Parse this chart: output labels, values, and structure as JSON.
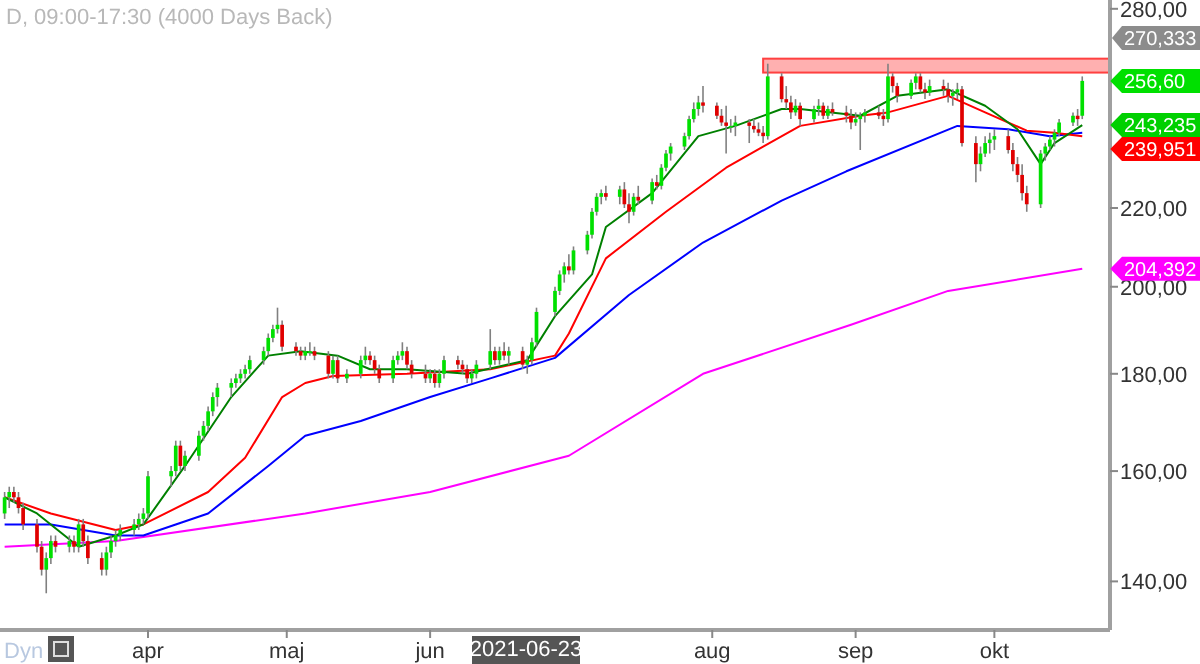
{
  "chart_data": {
    "type": "candlestick",
    "title": "D, 09:00-17:30 (4000 Days Back)",
    "log": true,
    "ylim": [
      132,
      283
    ],
    "yticks": [
      {
        "value": 140,
        "label": "140,00"
      },
      {
        "value": 160,
        "label": "160,00"
      },
      {
        "value": 180,
        "label": "180,00"
      },
      {
        "value": 200,
        "label": "200,00"
      },
      {
        "value": 220,
        "label": "220,00"
      },
      {
        "value": 280,
        "label": "280,00"
      }
    ],
    "xlim": [
      "2021-02-28",
      "2021-10-26"
    ],
    "xticks": [
      {
        "value": "2021-04-01",
        "label": "apr"
      },
      {
        "value": "2021-05-01",
        "label": "maj"
      },
      {
        "value": "2021-06-01",
        "label": "jun"
      },
      {
        "value": "2021-08-01",
        "label": "aug"
      },
      {
        "value": "2021-09-01",
        "label": "sep"
      },
      {
        "value": "2021-10-01",
        "label": "okt"
      }
    ],
    "x": [
      "2021-03-01",
      "2021-03-02",
      "2021-03-03",
      "2021-03-04",
      "2021-03-05",
      "2021-03-08",
      "2021-03-09",
      "2021-03-10",
      "2021-03-11",
      "2021-03-12",
      "2021-03-15",
      "2021-03-16",
      "2021-03-17",
      "2021-03-18",
      "2021-03-19",
      "2021-03-22",
      "2021-03-23",
      "2021-03-24",
      "2021-03-25",
      "2021-03-26",
      "2021-03-29",
      "2021-03-30",
      "2021-03-31",
      "2021-04-01",
      "2021-04-06",
      "2021-04-07",
      "2021-04-08",
      "2021-04-09",
      "2021-04-12",
      "2021-04-13",
      "2021-04-14",
      "2021-04-15",
      "2021-04-16",
      "2021-04-19",
      "2021-04-20",
      "2021-04-21",
      "2021-04-22",
      "2021-04-23",
      "2021-04-26",
      "2021-04-27",
      "2021-04-28",
      "2021-04-29",
      "2021-04-30",
      "2021-05-03",
      "2021-05-04",
      "2021-05-05",
      "2021-05-06",
      "2021-05-07",
      "2021-05-10",
      "2021-05-11",
      "2021-05-12",
      "2021-05-14",
      "2021-05-17",
      "2021-05-18",
      "2021-05-19",
      "2021-05-20",
      "2021-05-21",
      "2021-05-24",
      "2021-05-25",
      "2021-05-26",
      "2021-05-27",
      "2021-05-28",
      "2021-05-31",
      "2021-06-01",
      "2021-06-02",
      "2021-06-03",
      "2021-06-04",
      "2021-06-07",
      "2021-06-08",
      "2021-06-09",
      "2021-06-10",
      "2021-06-11",
      "2021-06-14",
      "2021-06-15",
      "2021-06-16",
      "2021-06-17",
      "2021-06-18",
      "2021-06-21",
      "2021-06-22",
      "2021-06-23",
      "2021-06-24",
      "2021-06-28",
      "2021-06-29",
      "2021-06-30",
      "2021-07-01",
      "2021-07-02",
      "2021-07-05",
      "2021-07-06",
      "2021-07-07",
      "2021-07-08",
      "2021-07-09",
      "2021-07-12",
      "2021-07-13",
      "2021-07-14",
      "2021-07-15",
      "2021-07-16",
      "2021-07-19",
      "2021-07-20",
      "2021-07-21",
      "2021-07-22",
      "2021-07-23",
      "2021-07-26",
      "2021-07-27",
      "2021-07-28",
      "2021-07-29",
      "2021-07-30",
      "2021-08-02",
      "2021-08-03",
      "2021-08-04",
      "2021-08-05",
      "2021-08-06",
      "2021-08-09",
      "2021-08-10",
      "2021-08-11",
      "2021-08-12",
      "2021-08-13",
      "2021-08-16",
      "2021-08-17",
      "2021-08-18",
      "2021-08-19",
      "2021-08-20",
      "2021-08-23",
      "2021-08-24",
      "2021-08-25",
      "2021-08-26",
      "2021-08-27",
      "2021-08-30",
      "2021-08-31",
      "2021-09-01",
      "2021-09-02",
      "2021-09-03",
      "2021-09-06",
      "2021-09-07",
      "2021-09-08",
      "2021-09-09",
      "2021-09-10",
      "2021-09-13",
      "2021-09-14",
      "2021-09-15",
      "2021-09-16",
      "2021-09-17",
      "2021-09-20",
      "2021-09-21",
      "2021-09-22",
      "2021-09-23",
      "2021-09-24",
      "2021-09-27",
      "2021-09-28",
      "2021-09-29",
      "2021-09-30",
      "2021-10-01",
      "2021-10-04",
      "2021-10-05",
      "2021-10-06",
      "2021-10-07",
      "2021-10-08",
      "2021-10-11",
      "2021-10-12",
      "2021-10-13",
      "2021-10-14",
      "2021-10-15",
      "2021-10-18",
      "2021-10-19",
      "2021-10-20"
    ],
    "ohlc": [
      [
        152,
        156,
        151,
        155
      ],
      [
        155,
        157,
        153,
        156
      ],
      [
        156,
        157,
        154,
        155
      ],
      [
        155,
        156,
        152,
        153
      ],
      [
        153,
        154,
        149,
        150
      ],
      [
        150,
        151,
        145,
        146
      ],
      [
        146,
        147,
        141,
        142
      ],
      [
        142,
        145,
        138,
        144
      ],
      [
        144,
        148,
        143,
        147
      ],
      [
        147,
        148,
        145,
        146
      ],
      [
        146,
        148,
        145,
        147
      ],
      [
        147,
        148,
        145,
        146
      ],
      [
        146,
        151,
        145,
        150
      ],
      [
        150,
        151,
        146,
        147
      ],
      [
        147,
        148,
        143,
        144
      ],
      [
        144,
        145,
        141,
        142
      ],
      [
        142,
        146,
        141,
        145
      ],
      [
        145,
        148,
        144,
        147
      ],
      [
        147,
        149,
        146,
        148
      ],
      [
        148,
        150,
        147,
        149
      ],
      [
        149,
        151,
        148,
        150
      ],
      [
        150,
        152,
        149,
        151
      ],
      [
        151,
        153,
        150,
        152
      ],
      [
        152,
        160,
        151,
        159
      ],
      [
        159,
        161,
        157,
        160
      ],
      [
        160,
        166,
        159,
        165
      ],
      [
        165,
        166,
        160,
        161
      ],
      [
        161,
        164,
        160,
        163
      ],
      [
        163,
        168,
        162,
        167
      ],
      [
        167,
        170,
        166,
        169
      ],
      [
        169,
        173,
        168,
        172
      ],
      [
        172,
        176,
        171,
        175
      ],
      [
        175,
        178,
        173,
        177
      ],
      [
        177,
        179,
        175,
        178
      ],
      [
        178,
        180,
        177,
        179
      ],
      [
        179,
        181,
        178,
        180
      ],
      [
        180,
        182,
        179,
        181
      ],
      [
        181,
        184,
        180,
        183
      ],
      [
        183,
        186,
        182,
        185
      ],
      [
        185,
        189,
        184,
        188
      ],
      [
        188,
        191,
        187,
        190
      ],
      [
        190,
        195,
        189,
        191
      ],
      [
        191,
        192,
        185,
        186
      ],
      [
        186,
        187,
        184,
        185
      ],
      [
        185,
        186,
        183,
        184
      ],
      [
        184,
        186,
        183,
        185
      ],
      [
        185,
        187,
        184,
        185
      ],
      [
        185,
        186,
        183,
        184
      ],
      [
        184,
        185,
        179,
        180
      ],
      [
        180,
        184,
        179,
        183
      ],
      [
        183,
        184,
        178,
        179
      ],
      [
        179,
        181,
        178,
        180
      ],
      [
        180,
        184,
        179,
        183
      ],
      [
        183,
        186,
        182,
        184
      ],
      [
        184,
        185,
        182,
        183
      ],
      [
        183,
        184,
        180,
        181
      ],
      [
        181,
        182,
        178,
        179
      ],
      [
        179,
        184,
        178,
        183
      ],
      [
        183,
        185,
        182,
        184
      ],
      [
        184,
        187,
        183,
        185
      ],
      [
        185,
        186,
        181,
        182
      ],
      [
        182,
        183,
        179,
        180
      ],
      [
        180,
        182,
        178,
        179
      ],
      [
        179,
        181,
        178,
        180
      ],
      [
        180,
        181,
        177,
        178
      ],
      [
        178,
        181,
        177,
        180
      ],
      [
        180,
        184,
        179,
        183
      ],
      [
        183,
        184,
        181,
        182
      ],
      [
        182,
        183,
        180,
        181
      ],
      [
        181,
        182,
        178,
        179
      ],
      [
        179,
        181,
        178,
        180
      ],
      [
        180,
        183,
        179,
        182
      ],
      [
        182,
        190,
        181,
        185
      ],
      [
        185,
        186,
        182,
        183
      ],
      [
        183,
        186,
        182,
        185
      ],
      [
        185,
        187,
        183,
        184
      ],
      [
        184,
        186,
        182,
        185
      ],
      [
        185,
        186,
        181,
        182
      ],
      [
        182,
        184,
        180,
        183
      ],
      [
        183,
        188,
        182,
        187
      ],
      [
        187,
        195,
        186,
        194
      ],
      [
        194,
        200,
        193,
        199
      ],
      [
        199,
        204,
        198,
        203
      ],
      [
        203,
        206,
        201,
        205
      ],
      [
        205,
        208,
        203,
        204
      ],
      [
        204,
        210,
        203,
        209
      ],
      [
        209,
        214,
        208,
        213
      ],
      [
        213,
        220,
        212,
        219
      ],
      [
        219,
        224,
        218,
        223
      ],
      [
        223,
        225,
        221,
        224
      ],
      [
        224,
        226,
        222,
        223
      ],
      [
        223,
        226,
        221,
        225
      ],
      [
        225,
        227,
        220,
        221
      ],
      [
        221,
        224,
        216,
        219
      ],
      [
        219,
        224,
        218,
        223
      ],
      [
        223,
        226,
        221,
        222
      ],
      [
        222,
        228,
        221,
        227
      ],
      [
        227,
        229,
        225,
        226
      ],
      [
        226,
        232,
        225,
        231
      ],
      [
        231,
        236,
        230,
        235
      ],
      [
        235,
        238,
        233,
        237
      ],
      [
        237,
        241,
        236,
        240
      ],
      [
        240,
        246,
        239,
        245
      ],
      [
        245,
        250,
        244,
        248
      ],
      [
        248,
        252,
        246,
        250
      ],
      [
        250,
        255,
        247,
        249
      ],
      [
        249,
        250,
        245,
        246
      ],
      [
        246,
        248,
        243,
        244
      ],
      [
        244,
        249,
        235,
        243
      ],
      [
        243,
        245,
        241,
        243
      ],
      [
        243,
        246,
        240,
        244
      ],
      [
        244,
        245,
        238,
        243
      ],
      [
        243,
        245,
        241,
        242
      ],
      [
        242,
        244,
        240,
        241
      ],
      [
        241,
        243,
        238,
        240
      ],
      [
        240,
        262,
        239,
        258
      ],
      [
        258,
        259,
        250,
        251
      ],
      [
        251,
        255,
        248,
        250
      ],
      [
        250,
        252,
        245,
        247
      ],
      [
        247,
        251,
        246,
        249
      ],
      [
        249,
        250,
        243,
        245
      ],
      [
        245,
        249,
        244,
        248
      ],
      [
        248,
        251,
        246,
        249
      ],
      [
        249,
        250,
        245,
        246
      ],
      [
        246,
        249,
        245,
        248
      ],
      [
        248,
        250,
        246,
        247
      ],
      [
        247,
        249,
        244,
        246
      ],
      [
        246,
        248,
        242,
        244
      ],
      [
        244,
        247,
        243,
        245
      ],
      [
        245,
        247,
        236,
        246
      ],
      [
        246,
        248,
        244,
        247
      ],
      [
        247,
        249,
        245,
        246
      ],
      [
        246,
        248,
        243,
        245
      ],
      [
        245,
        262,
        244,
        258
      ],
      [
        258,
        259,
        253,
        255
      ],
      [
        255,
        256,
        250,
        252
      ],
      [
        252,
        257,
        251,
        256
      ],
      [
        256,
        259,
        254,
        258
      ],
      [
        258,
        259,
        253,
        254
      ],
      [
        254,
        256,
        251,
        253
      ],
      [
        253,
        257,
        252,
        255
      ],
      [
        255,
        257,
        252,
        254
      ],
      [
        254,
        256,
        250,
        252
      ],
      [
        252,
        254,
        249,
        253
      ],
      [
        253,
        256,
        251,
        254
      ],
      [
        254,
        255,
        237,
        238
      ],
      [
        238,
        240,
        227,
        232
      ],
      [
        232,
        237,
        230,
        235
      ],
      [
        235,
        240,
        234,
        238
      ],
      [
        238,
        241,
        235,
        239
      ],
      [
        239,
        242,
        236,
        240
      ],
      [
        240,
        242,
        235,
        236
      ],
      [
        236,
        238,
        230,
        232
      ],
      [
        232,
        234,
        227,
        229
      ],
      [
        229,
        232,
        222,
        224
      ],
      [
        224,
        226,
        219,
        221
      ],
      [
        221,
        236,
        220,
        235
      ],
      [
        235,
        238,
        233,
        237
      ],
      [
        237,
        240,
        236,
        239
      ],
      [
        239,
        242,
        237,
        241
      ],
      [
        241,
        245,
        240,
        244
      ],
      [
        244,
        247,
        243,
        246
      ],
      [
        246,
        248,
        243,
        245
      ],
      [
        246,
        258,
        245,
        256.6
      ]
    ],
    "series": [
      {
        "type": "line",
        "color": "#ff00ff",
        "x": [
          "2021-03-01",
          "2021-03-25",
          "2021-05-05",
          "2021-06-01",
          "2021-07-01",
          "2021-07-30",
          "2021-08-31",
          "2021-09-21",
          "2021-10-20"
        ],
        "values": [
          146,
          147,
          152,
          156,
          163,
          180,
          191,
          199,
          204.3921
        ]
      },
      {
        "type": "line",
        "color": "#0000ff",
        "x": [
          "2021-03-01",
          "2021-03-11",
          "2021-03-25",
          "2021-03-31",
          "2021-04-14",
          "2021-04-27",
          "2021-05-05",
          "2021-05-17",
          "2021-06-01",
          "2021-06-14",
          "2021-06-28",
          "2021-07-14",
          "2021-07-30",
          "2021-08-16",
          "2021-08-30",
          "2021-09-23",
          "2021-10-04",
          "2021-10-13",
          "2021-10-20"
        ],
        "values": [
          150,
          150,
          148,
          148,
          152,
          161,
          167,
          170,
          175,
          179,
          183.5,
          198,
          211,
          222,
          230,
          243,
          242,
          240,
          241
        ]
      },
      {
        "type": "line",
        "color": "#ff0000",
        "x": [
          "2021-03-01",
          "2021-03-11",
          "2021-03-25",
          "2021-03-31",
          "2021-04-14",
          "2021-04-22",
          "2021-04-30",
          "2021-05-05",
          "2021-05-11",
          "2021-05-27",
          "2021-06-14",
          "2021-06-28",
          "2021-07-01",
          "2021-07-09",
          "2021-07-22",
          "2021-08-04",
          "2021-08-12",
          "2021-08-20",
          "2021-09-02",
          "2021-09-08",
          "2021-09-21",
          "2021-09-29",
          "2021-10-08",
          "2021-10-14",
          "2021-10-20"
        ],
        "values": [
          155,
          152,
          149,
          150,
          156,
          162.6,
          175,
          178,
          179.5,
          180,
          181,
          184,
          189,
          207,
          219,
          231,
          237,
          243,
          246,
          247,
          252,
          247,
          241.6,
          241,
          239.9516
        ]
      },
      {
        "type": "line",
        "color": "#008000",
        "x": [
          "2021-03-01",
          "2021-03-08",
          "2021-03-17",
          "2021-03-25",
          "2021-03-31",
          "2021-04-09",
          "2021-04-19",
          "2021-04-27",
          "2021-05-04",
          "2021-05-12",
          "2021-05-19",
          "2021-05-27",
          "2021-06-09",
          "2021-06-22",
          "2021-06-28",
          "2021-07-06",
          "2021-07-09",
          "2021-07-19",
          "2021-07-29",
          "2021-08-06",
          "2021-08-16",
          "2021-08-20",
          "2021-09-02",
          "2021-09-10",
          "2021-09-21",
          "2021-09-29",
          "2021-10-06",
          "2021-10-11",
          "2021-10-14",
          "2021-10-20"
        ],
        "values": [
          155,
          152,
          146,
          148,
          150,
          161,
          175,
          184,
          185,
          184,
          181,
          181,
          180,
          183,
          193,
          203,
          215,
          224,
          240,
          243,
          248,
          248,
          246,
          252,
          254,
          249,
          242,
          232,
          238,
          243.2356
        ]
      }
    ],
    "bands": [
      {
        "axis": "y",
        "from": 259.2,
        "to": 263.6,
        "color": "#ffb0b0"
      }
    ],
    "annotations": [
      "Dyn",
      "2021-06-23",
      "270,333",
      {
        "text": "256,60",
        "x": "2021-10-20",
        "y": 256.6
      },
      {
        "text": "243,235",
        "x": "2021-10-20",
        "y": 243.2356
      },
      {
        "text": "239,951",
        "x": "2021-10-20",
        "y": 239.9516
      },
      {
        "text": "204,392",
        "x": "2021-10-20",
        "y": 204.3921
      }
    ]
  }
}
